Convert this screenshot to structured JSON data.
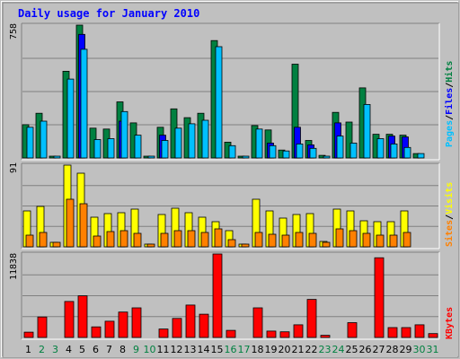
{
  "title": "Daily usage for January 2010",
  "colors": {
    "background": "#c0c0c0",
    "title": "#0000ff",
    "hits": "#008040",
    "files": "#0000ff",
    "pages": "#00c0ff",
    "visits": "#ffff00",
    "sites": "#ff8000",
    "kbytes": "#ff0000",
    "weekend_label": "#008040",
    "weekday_label": "#000000"
  },
  "axis_labels": {
    "hits_max": "758",
    "visits_max": "91",
    "kbytes_max": "11838"
  },
  "legend": {
    "pages": "Pages",
    "files": "Files",
    "hits": "Hits",
    "sep": "/",
    "sites": "Sites",
    "visits": "Visits",
    "kbytes": "KBytes"
  },
  "chart_data": [
    {
      "type": "bar",
      "categories": [
        "1",
        "2",
        "3",
        "4",
        "5",
        "6",
        "7",
        "8",
        "9",
        "10",
        "11",
        "12",
        "13",
        "14",
        "15",
        "16",
        "17",
        "18",
        "19",
        "20",
        "21",
        "22",
        "23",
        "24",
        "25",
        "26",
        "27",
        "28",
        "29",
        "30",
        "31"
      ],
      "weekend_days": [
        "2",
        "3",
        "9",
        "10",
        "16",
        "17",
        "23",
        "24",
        "30",
        "31"
      ],
      "ylim": [
        0,
        758
      ],
      "series": [
        {
          "name": "Hits",
          "values": [
            190,
            255,
            10,
            495,
            758,
            170,
            165,
            320,
            200,
            5,
            175,
            280,
            230,
            255,
            670,
            90,
            5,
            185,
            160,
            45,
            535,
            100,
            15,
            260,
            205,
            400,
            135,
            135,
            130,
            25,
            0
          ]
        },
        {
          "name": "Files",
          "values": [
            0,
            0,
            0,
            0,
            705,
            0,
            0,
            210,
            0,
            0,
            130,
            0,
            0,
            0,
            0,
            0,
            0,
            0,
            85,
            0,
            175,
            75,
            0,
            200,
            0,
            0,
            0,
            125,
            120,
            0,
            0
          ]
        },
        {
          "name": "Pages",
          "values": [
            175,
            210,
            10,
            450,
            620,
            105,
            110,
            265,
            130,
            5,
            100,
            170,
            195,
            215,
            635,
            70,
            5,
            165,
            70,
            40,
            80,
            55,
            10,
            125,
            85,
            305,
            110,
            80,
            60,
            25,
            0
          ]
        }
      ]
    },
    {
      "type": "bar",
      "categories": [
        "1",
        "2",
        "3",
        "4",
        "5",
        "6",
        "7",
        "8",
        "9",
        "10",
        "11",
        "12",
        "13",
        "14",
        "15",
        "16",
        "17",
        "18",
        "19",
        "20",
        "21",
        "22",
        "23",
        "24",
        "25",
        "26",
        "27",
        "28",
        "29",
        "30",
        "31"
      ],
      "ylim": [
        0,
        91
      ],
      "series": [
        {
          "name": "Visits",
          "values": [
            40,
            45,
            5,
            91,
            82,
            33,
            37,
            38,
            42,
            3,
            36,
            43,
            38,
            33,
            28,
            18,
            3,
            53,
            40,
            32,
            36,
            37,
            6,
            42,
            40,
            29,
            28,
            28,
            40,
            0,
            0
          ]
        },
        {
          "name": "Sites",
          "values": [
            13,
            16,
            5,
            53,
            48,
            12,
            17,
            18,
            15,
            3,
            15,
            18,
            18,
            16,
            20,
            8,
            3,
            16,
            14,
            13,
            16,
            15,
            5,
            20,
            18,
            15,
            13,
            13,
            16,
            0,
            0
          ]
        }
      ]
    },
    {
      "type": "bar",
      "categories": [
        "1",
        "2",
        "3",
        "4",
        "5",
        "6",
        "7",
        "8",
        "9",
        "10",
        "11",
        "12",
        "13",
        "14",
        "15",
        "16",
        "17",
        "18",
        "19",
        "20",
        "21",
        "22",
        "23",
        "24",
        "25",
        "26",
        "27",
        "28",
        "29",
        "30",
        "31"
      ],
      "ylim": [
        0,
        11838
      ],
      "series": [
        {
          "name": "KBytes",
          "values": [
            750,
            2900,
            0,
            5100,
            5900,
            1500,
            2300,
            3600,
            4200,
            0,
            1200,
            2700,
            4600,
            3300,
            11838,
            1000,
            0,
            4200,
            900,
            800,
            1800,
            5400,
            300,
            0,
            2100,
            0,
            11300,
            1400,
            1400,
            1800,
            550
          ]
        }
      ]
    }
  ]
}
